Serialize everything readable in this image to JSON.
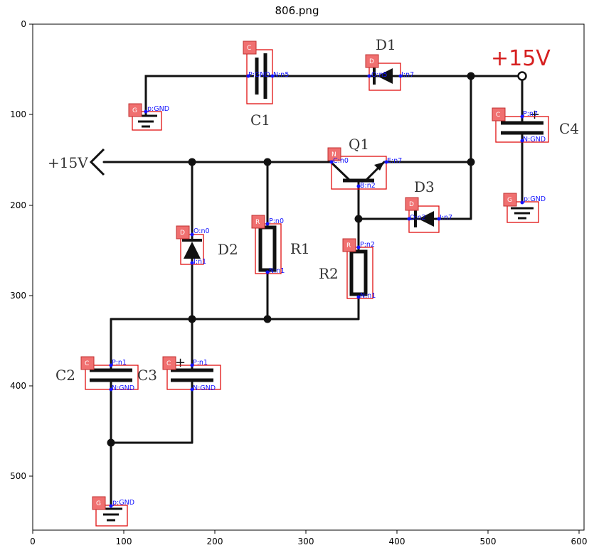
{
  "title": "806.png",
  "axes": {
    "x_ticks": [
      "0",
      "100",
      "200",
      "300",
      "400",
      "500",
      "600"
    ],
    "y_ticks": [
      "0",
      "100",
      "200",
      "300",
      "400",
      "500"
    ]
  },
  "schematic_labels": {
    "supply_top": "+15V",
    "supply_left": "+15V",
    "D1": "D1",
    "C1": "C1",
    "C4": "C4",
    "Q1": "Q1",
    "D3": "D3",
    "D2": "D2",
    "R1": "R1",
    "R2": "R2",
    "C2": "C2",
    "C3": "C3"
  },
  "components": [
    {
      "id": "C1",
      "tag": "C",
      "pins": [
        "P:GND",
        "N:n5"
      ]
    },
    {
      "id": "D1",
      "tag": "D",
      "pins": [
        "O:n5",
        "I:n7"
      ]
    },
    {
      "id": "G1",
      "tag": "G",
      "pins": [
        "p:GND"
      ]
    },
    {
      "id": "C4",
      "tag": "C",
      "pins": [
        "P:n7",
        "N:GND"
      ]
    },
    {
      "id": "Q1",
      "tag": "N",
      "pins": [
        "C:n0",
        "E:n7",
        "B:n2"
      ]
    },
    {
      "id": "G2",
      "tag": "G",
      "pins": [
        "p:GND"
      ]
    },
    {
      "id": "D3",
      "tag": "D",
      "pins": [
        "O:n2",
        "I:n7"
      ]
    },
    {
      "id": "R1",
      "tag": "R",
      "pins": [
        "P:n0",
        "N:n1"
      ]
    },
    {
      "id": "D2",
      "tag": "D",
      "pins": [
        "O:n0",
        "I:n1"
      ]
    },
    {
      "id": "R2",
      "tag": "R",
      "pins": [
        "P:n2",
        "N:n1"
      ]
    },
    {
      "id": "C2",
      "tag": "C",
      "pins": [
        "P:n1",
        "N:GND"
      ]
    },
    {
      "id": "C3",
      "tag": "C",
      "pins": [
        "P:n1",
        "N:GND"
      ]
    },
    {
      "id": "G3",
      "tag": "G",
      "pins": [
        "p:GND"
      ]
    }
  ],
  "colors": {
    "box": "#e01010",
    "tag": "#f07070",
    "pin": "#1010ff",
    "supply_top": "#d62020"
  }
}
